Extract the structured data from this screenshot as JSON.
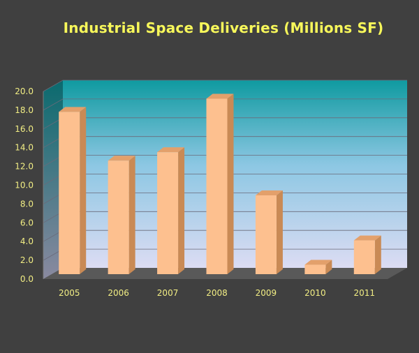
{
  "chart_data": {
    "type": "bar",
    "title": "Industrial Space Deliveries (Millions SF)",
    "xlabel": "",
    "ylabel": "",
    "categories": [
      "2005",
      "2006",
      "2007",
      "2008",
      "2009",
      "2010",
      "2011"
    ],
    "values": [
      17.3,
      12.1,
      13.0,
      18.7,
      8.4,
      1.0,
      3.6
    ],
    "ylim": [
      0,
      20
    ],
    "yticks": [
      "0.0",
      "2.0",
      "4.0",
      "6.0",
      "8.0",
      "10.0",
      "12.0",
      "14.0",
      "16.0",
      "18.0",
      "20.0"
    ],
    "grid": true,
    "legend": "none",
    "style": "3d-column",
    "colors": {
      "bar_front": "#fdc08f",
      "bar_side": "#c98a55",
      "bar_top": "#e3a06b",
      "title": "#f7f75a",
      "tick_label": "#f2ee84",
      "background": "#404040",
      "wall_top": "#0f9aa0",
      "wall_bottom": "#dcdcf3",
      "floor": "#595959"
    }
  }
}
